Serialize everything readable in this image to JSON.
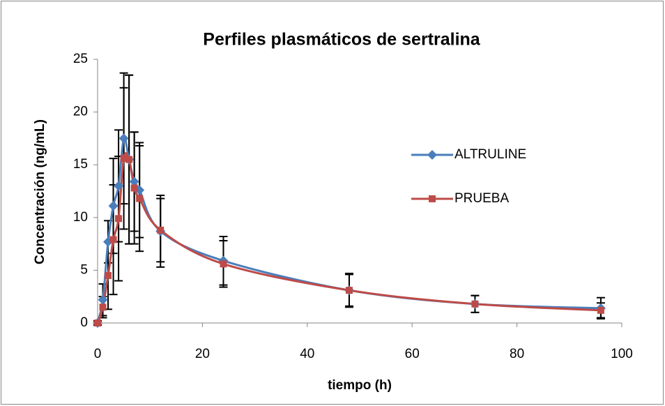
{
  "chart_data": {
    "type": "line",
    "title": "Perfiles plasmáticos de sertralina",
    "x_label": "tiempo (h)",
    "y_label": "Concentración (ng/mL)",
    "x": [
      0,
      1,
      2,
      3,
      4,
      5,
      6,
      7,
      8,
      12,
      24,
      48,
      72,
      96
    ],
    "series": [
      {
        "name": "ALTRULINE",
        "color": "#4a7ebb",
        "marker": "diamond",
        "values": [
          0,
          2.2,
          7.7,
          11.1,
          13.0,
          17.5,
          15.5,
          13.4,
          12.6,
          8.7,
          5.9,
          3.1,
          1.8,
          1.4
        ],
        "errors": [
          0.2,
          1.5,
          2.0,
          4.5,
          5.3,
          6.2,
          8.0,
          4.7,
          4.5,
          3.4,
          2.3,
          1.6,
          0.8,
          1.0
        ]
      },
      {
        "name": "PRUEBA",
        "color": "#be4b48",
        "marker": "square",
        "values": [
          0,
          1.5,
          4.5,
          7.9,
          9.9,
          15.6,
          15.5,
          12.8,
          11.8,
          8.8,
          5.6,
          3.1,
          1.8,
          1.2
        ],
        "errors": [
          0.2,
          1.0,
          3.2,
          5.2,
          5.9,
          6.7,
          8.0,
          5.3,
          5.0,
          3.0,
          2.2,
          1.5,
          0.8,
          0.7
        ]
      }
    ],
    "xlim": [
      0,
      100
    ],
    "xticks": [
      0,
      20,
      40,
      60,
      80,
      100
    ],
    "ylim": [
      0,
      25
    ],
    "yticks": [
      0,
      5,
      10,
      15,
      20,
      25
    ],
    "grid": false,
    "smooth": true,
    "legend": "right"
  }
}
